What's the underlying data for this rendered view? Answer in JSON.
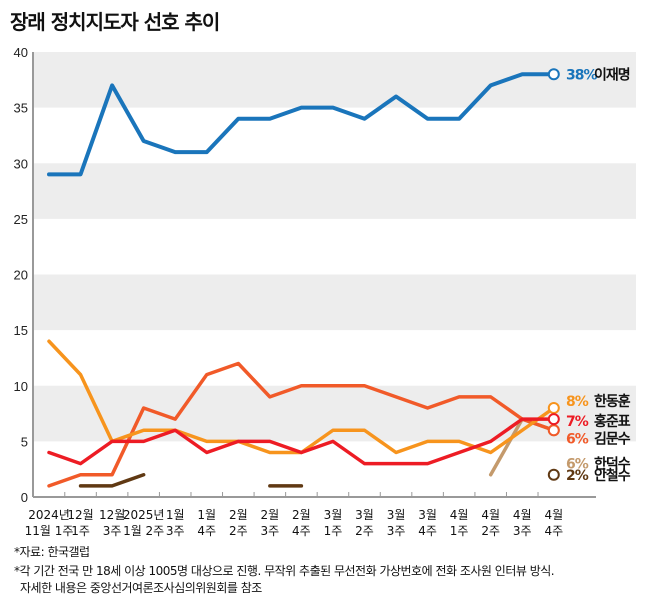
{
  "title": "장래 정치지도자 선호 추이",
  "notes": [
    "*자료: 한국갤럽",
    "*각 기간 전국 만 18세 이상 1005명 대상으로 진행. 무작위 추출된 무선전화 가상번호에 전화 조사원 인터뷰 방식.",
    "자세한 내용은 중앙선거여론조사심의위원회를 참조"
  ],
  "chart_data": {
    "type": "line",
    "title": "장래 정치지도자 선호 추이",
    "ylim": [
      0,
      40
    ],
    "yticks": [
      0,
      5,
      10,
      15,
      20,
      25,
      30,
      35,
      40
    ],
    "categories": [
      [
        "2024년",
        "11월 1주"
      ],
      [
        "12월",
        "1주"
      ],
      [
        "12월",
        "3주"
      ],
      [
        "2025년",
        "1월 2주"
      ],
      [
        "1월",
        "3주"
      ],
      [
        "1월",
        "4주"
      ],
      [
        "2월",
        "2주"
      ],
      [
        "2월",
        "3주"
      ],
      [
        "2월",
        "4주"
      ],
      [
        "3월",
        "1주"
      ],
      [
        "3월",
        "2주"
      ],
      [
        "3월",
        "3주"
      ],
      [
        "3월",
        "4주"
      ],
      [
        "4월",
        "1주"
      ],
      [
        "4월",
        "2주"
      ],
      [
        "4월",
        "3주"
      ],
      [
        "4월",
        "4주"
      ]
    ],
    "series": [
      {
        "name": "이재명",
        "label": "38%",
        "color": "#1a75bb",
        "values": [
          29,
          29,
          37,
          32,
          31,
          31,
          34,
          34,
          35,
          35,
          34,
          36,
          34,
          34,
          37,
          38,
          38
        ]
      },
      {
        "name": "한동훈",
        "label": "8%",
        "color": "#f7941d",
        "values": [
          14,
          11,
          5,
          6,
          6,
          5,
          5,
          4,
          4,
          6,
          6,
          4,
          5,
          5,
          4,
          6,
          8
        ]
      },
      {
        "name": "홍준표",
        "label": "7%",
        "color": "#ed1c24",
        "values": [
          4,
          3,
          5,
          5,
          6,
          4,
          5,
          5,
          4,
          5,
          3,
          3,
          3,
          4,
          5,
          7,
          7
        ]
      },
      {
        "name": "김문수",
        "label": "6%",
        "color": "#f15a29",
        "values": [
          1,
          2,
          2,
          8,
          7,
          11,
          12,
          9,
          10,
          10,
          10,
          9,
          8,
          9,
          9,
          7,
          6
        ]
      },
      {
        "name": "한덕수",
        "label": "6%",
        "color": "#c49a6c",
        "values": [
          null,
          null,
          null,
          null,
          null,
          null,
          null,
          null,
          null,
          null,
          null,
          null,
          null,
          null,
          2,
          7,
          6
        ]
      },
      {
        "name": "안철수",
        "label": "2%",
        "color": "#603913",
        "values": [
          null,
          1,
          1,
          2,
          null,
          null,
          null,
          1,
          1,
          null,
          null,
          null,
          null,
          null,
          null,
          null,
          2
        ]
      }
    ]
  }
}
